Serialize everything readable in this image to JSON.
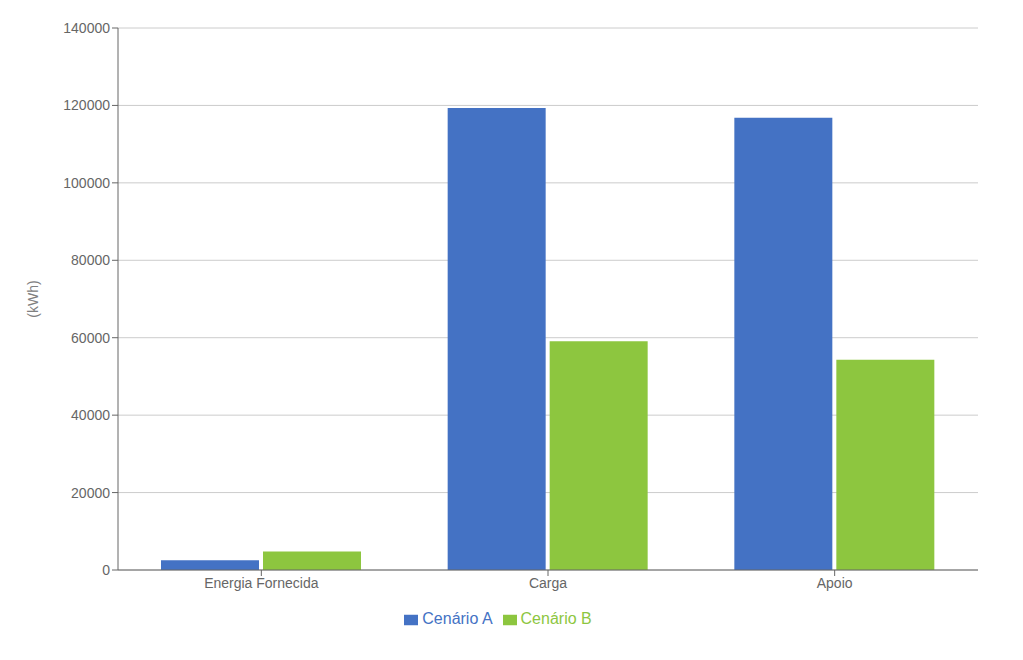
{
  "chart_data": {
    "type": "bar",
    "categories": [
      "Energia Fornecida",
      "Carga",
      "Apoio"
    ],
    "series": [
      {
        "name": "Cenário A",
        "color": "#4472C4",
        "values": [
          2510,
          119306,
          116796
        ]
      },
      {
        "name": "Cenário B",
        "color": "#8DC63F",
        "values": [
          4799,
          59118,
          54319
        ]
      }
    ],
    "ylabel": "(kWh)",
    "ylim": [
      0,
      140000
    ],
    "yticks": [
      0,
      20000,
      40000,
      60000,
      80000,
      100000,
      120000,
      140000
    ],
    "grid": true,
    "legend": "bottom"
  }
}
